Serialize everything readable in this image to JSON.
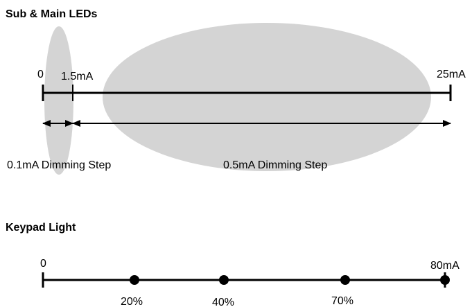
{
  "colors": {
    "ellipse": "#d4d4d4",
    "line": "#000000"
  },
  "leds_section": {
    "title": "Sub & Main LEDs",
    "tick_start": "0",
    "tick_mid": "1.5mA",
    "tick_end": "25mA",
    "range_fine_label": "0.1mA Dimming Step",
    "range_coarse_label": "0.5mA Dimming Step"
  },
  "keypad_section": {
    "title": "Keypad Light",
    "tick_start": "0",
    "tick_end": "80mA",
    "points": [
      {
        "label": "20%"
      },
      {
        "label": "40%"
      },
      {
        "label": "70%"
      }
    ]
  }
}
